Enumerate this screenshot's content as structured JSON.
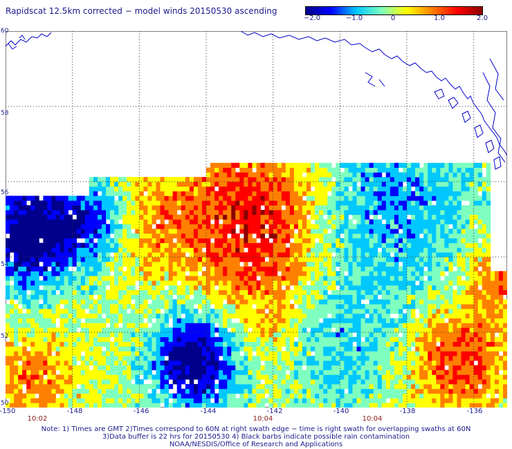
{
  "title": "Rapidscat 12.5km corrected − model winds 20150530 ascending",
  "colorbar": {
    "ticks": [
      "−2.0",
      "−1.0",
      "0",
      "1.0",
      "2.0"
    ],
    "range": [
      -2.0,
      2.0
    ],
    "colors": [
      "#00008b",
      "#0000ff",
      "#00c8ff",
      "#7fffbf",
      "#ffff00",
      "#ff8000",
      "#ff0000",
      "#8b0000"
    ]
  },
  "map": {
    "lon_range": [
      -150,
      -135
    ],
    "lat_range": [
      50,
      60
    ],
    "lat_labels": [
      "60",
      "58",
      "56",
      "54",
      "52",
      "50"
    ],
    "lon_labels": [
      "-150",
      "-148",
      "-146",
      "-144",
      "-142",
      "-140",
      "-138",
      "-136"
    ],
    "times": [
      "10:02",
      "10:04",
      "10:04"
    ],
    "grid": "dotted",
    "coastline_color": "#0000cc",
    "background": "#ffffff"
  },
  "notes": [
    "Note: 1) Times are GMT 2)Times correspond to 60N at right swath edge − time is right swath for overlapping swaths at 60N",
    "3)Data buffer is 22 hrs for 20150530 4) Black barbs indicate possible rain contamination",
    "NOAA/NESDIS/Office of Research and Applications"
  ]
}
